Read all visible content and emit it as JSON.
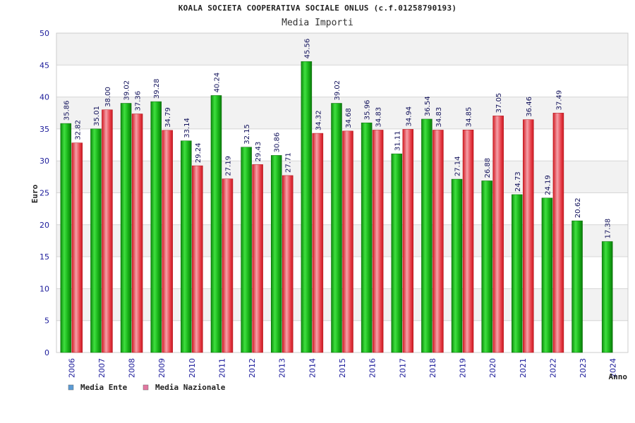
{
  "chart_data": {
    "type": "bar",
    "title": "KOALA SOCIETA COOPERATIVA SOCIALE ONLUS (c.f.01258790193)",
    "subtitle": "Media Importi",
    "ylabel": "Euro",
    "xlabel": "Anno",
    "ylim": [
      0,
      50
    ],
    "yticks": [
      0,
      5,
      10,
      15,
      20,
      25,
      30,
      35,
      40,
      45,
      50
    ],
    "grid": true,
    "legend_position": "bottom-left",
    "categories": [
      "2006",
      "2007",
      "2008",
      "2009",
      "2010",
      "2011",
      "2012",
      "2013",
      "2014",
      "2015",
      "2016",
      "2017",
      "2018",
      "2019",
      "2020",
      "2021",
      "2022",
      "2023",
      "2024"
    ],
    "series": [
      {
        "name": "Media Ente",
        "legend_color": "#5b9bd5",
        "color": "#1db31d",
        "values": [
          35.86,
          35.01,
          39.02,
          39.28,
          33.14,
          40.24,
          32.15,
          30.86,
          45.56,
          39.02,
          35.96,
          31.11,
          36.54,
          27.14,
          26.88,
          24.73,
          24.19,
          20.62,
          17.38
        ],
        "labels": [
          "35.86",
          "35.01",
          "39.02",
          "39.28",
          "33.14",
          "40.24",
          "32.15",
          "30.86",
          "45.56",
          "39.02",
          "35.96",
          "31.11",
          "36.54",
          "27.14",
          "26.88",
          "24.73",
          "24.19",
          "20.62",
          "17.38"
        ]
      },
      {
        "name": "Media Nazionale",
        "legend_color": "#e377a0",
        "color": "#e8303a",
        "values": [
          32.82,
          38.0,
          37.36,
          34.79,
          29.24,
          27.19,
          29.43,
          27.71,
          34.32,
          34.68,
          34.83,
          34.94,
          34.83,
          34.85,
          37.05,
          36.46,
          37.49,
          null,
          null
        ],
        "labels": [
          "32.82",
          "38.00",
          "37.36",
          "34.79",
          "29.24",
          "27.19",
          "29.43",
          "27.71",
          "34.32",
          "34.68",
          "34.83",
          "34.94",
          "34.83",
          "34.85",
          "37.05",
          "36.46",
          "37.49",
          "",
          ""
        ]
      }
    ]
  }
}
